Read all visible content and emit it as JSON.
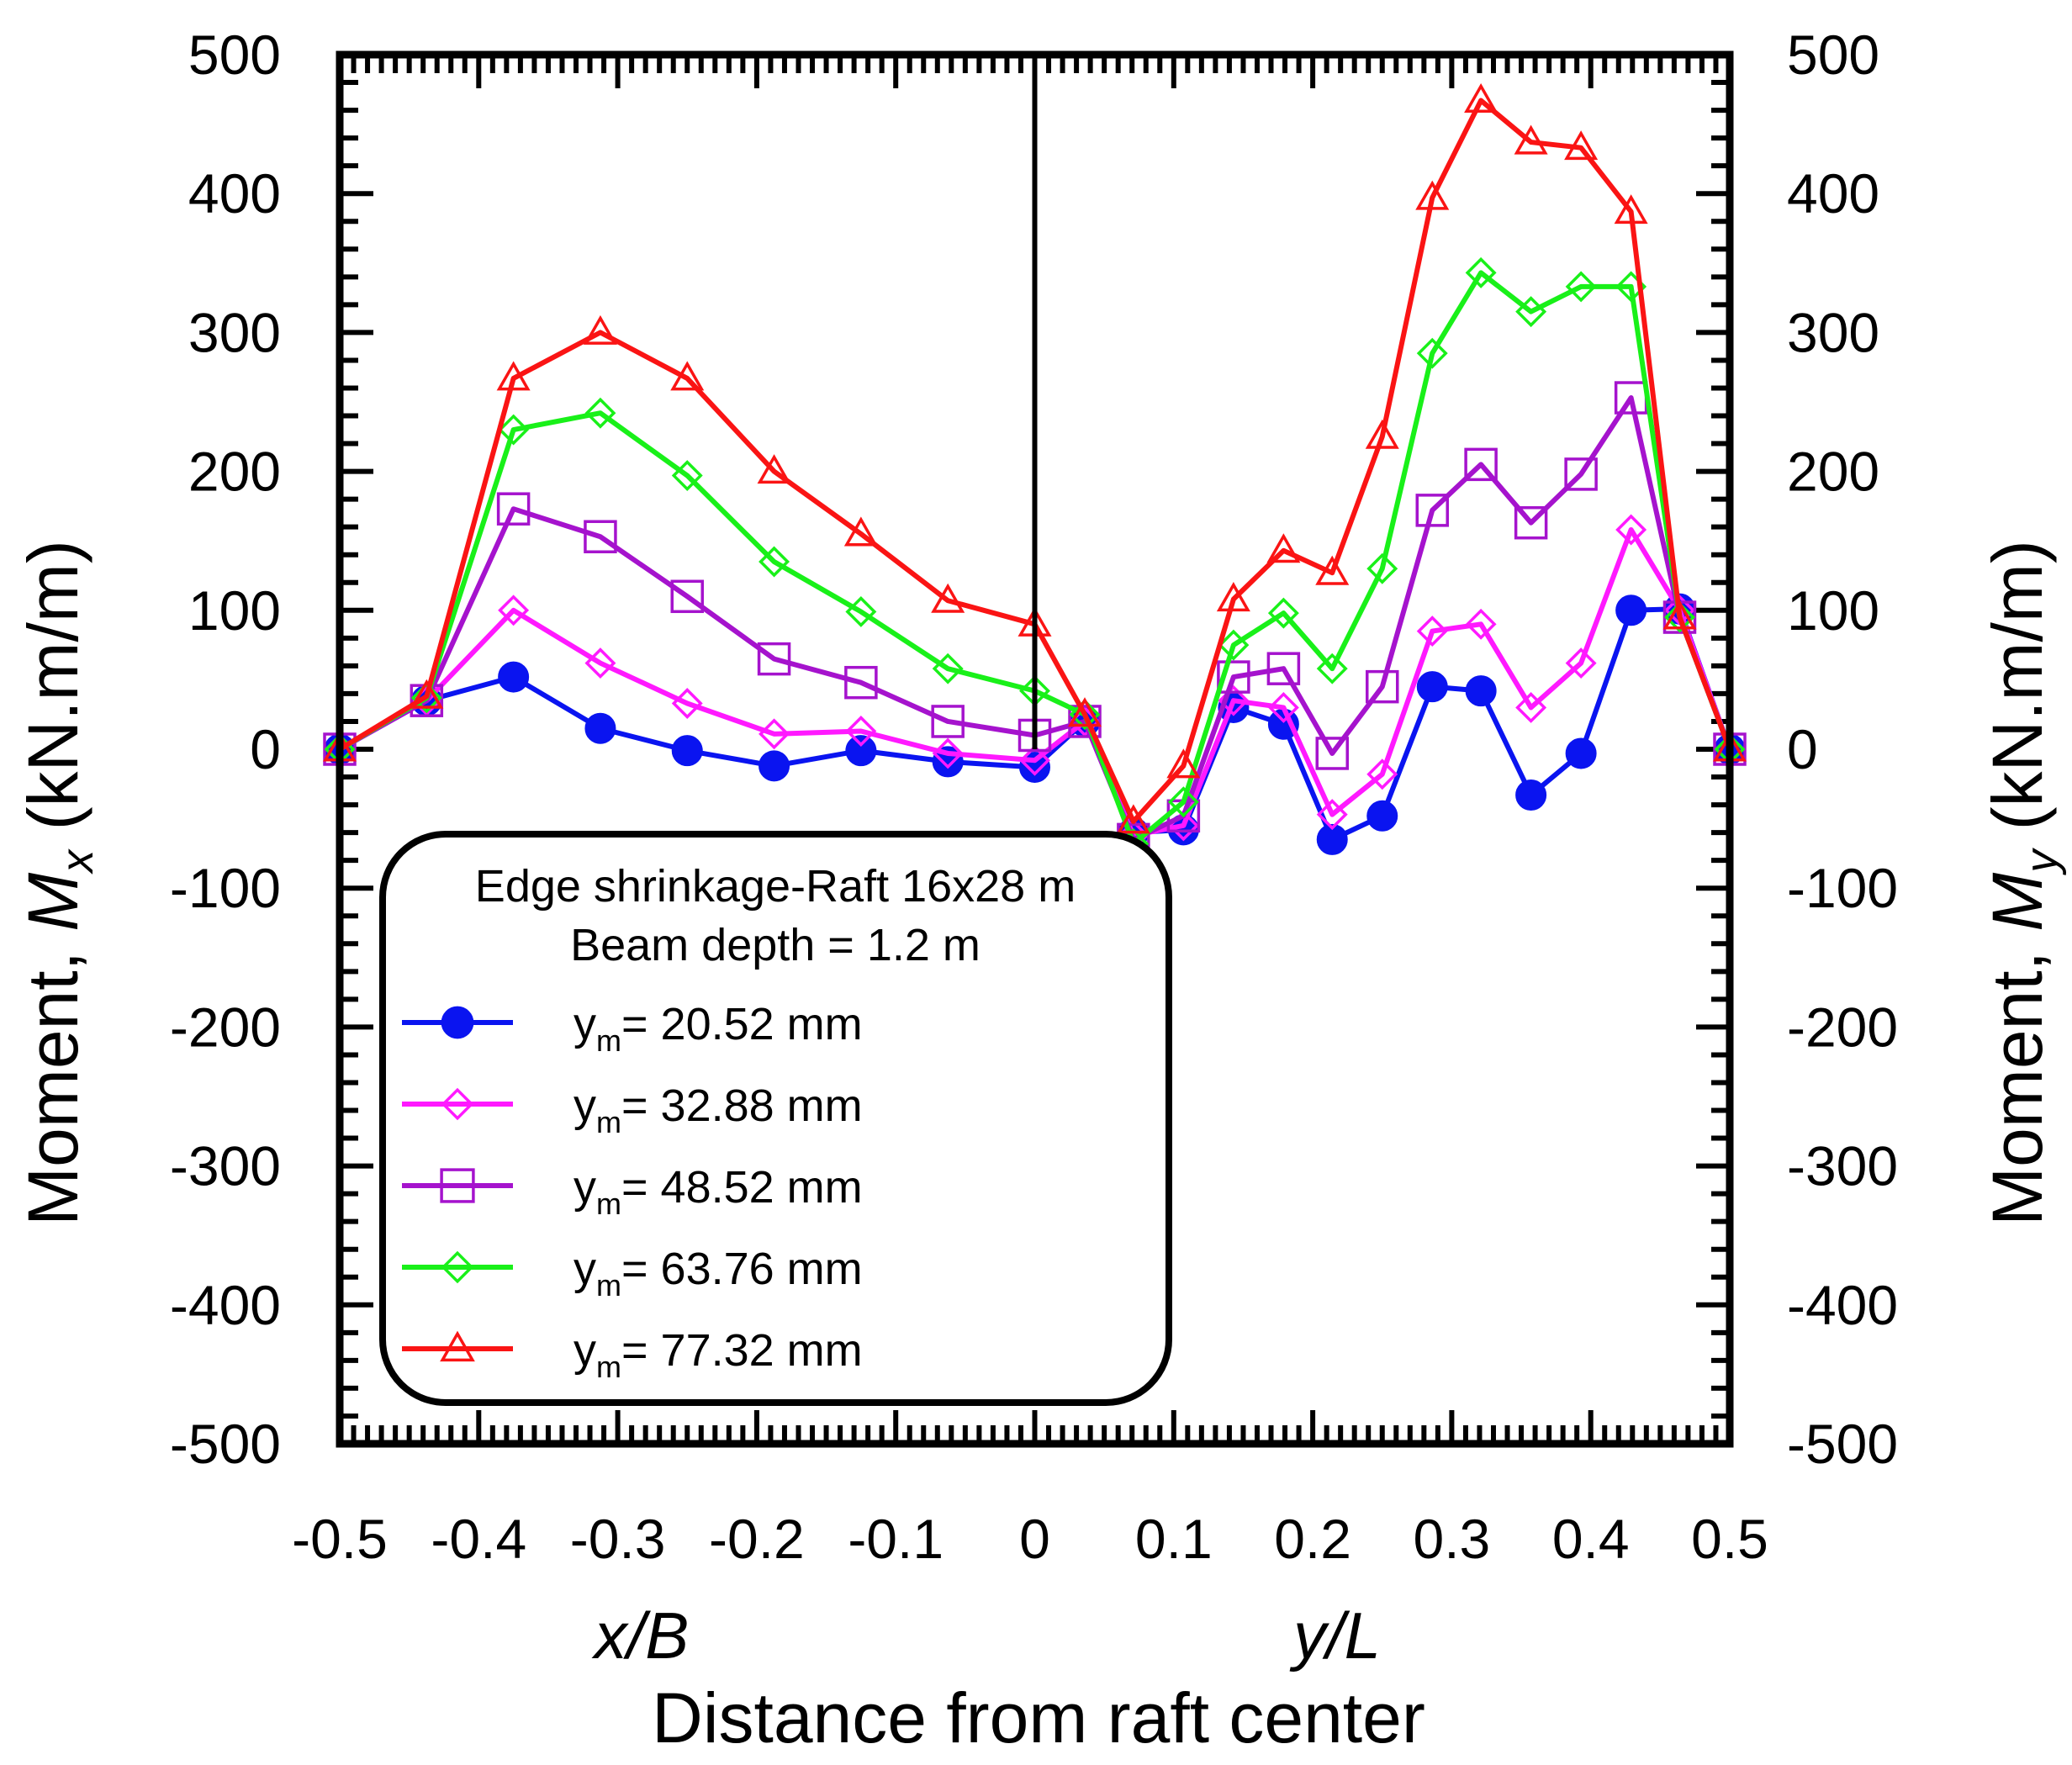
{
  "chart_data": {
    "type": "line",
    "title": "Edge shrinkage-Raft 16x28 m",
    "subtitle": "Beam depth = 1.2 m",
    "xlabel": "Distance from raft center",
    "x_sub_left": "x/B",
    "x_sub_right": "y/L",
    "ylabel_left": {
      "prefix": "Moment, ",
      "symbol": "M",
      "sub": "x",
      "unit": " (kN.m/m)"
    },
    "ylabel_right": {
      "prefix": "Moment, ",
      "symbol": "M",
      "sub": "y",
      "unit": " (kN.m/m)"
    },
    "xlim": [
      -0.5,
      0.5
    ],
    "ylim": [
      -500,
      500
    ],
    "x_ticks": [
      "-0.5",
      "-0.4",
      "-0.3",
      "-0.2",
      "-0.1",
      "0",
      "0.1",
      "0.2",
      "0.3",
      "0.4",
      "0.5"
    ],
    "y_ticks": [
      "500",
      "400",
      "300",
      "200",
      "100",
      "0",
      "-100",
      "-200",
      "-300",
      "-400",
      "-500"
    ],
    "x": [
      -0.5,
      -0.4375,
      -0.375,
      -0.3125,
      -0.25,
      -0.1875,
      -0.125,
      -0.0625,
      0,
      0.036,
      0.071,
      0.107,
      0.143,
      0.179,
      0.214,
      0.25,
      0.286,
      0.321,
      0.357,
      0.393,
      0.429,
      0.464,
      0.5
    ],
    "series": [
      {
        "name": "y",
        "sub": "m",
        "suffix": "= 20.52 mm",
        "color": "#0a14f0",
        "marker": "circle-filled",
        "values": [
          0,
          35,
          52,
          15,
          -1,
          -12,
          -1,
          -9,
          -13,
          20,
          -60,
          -58,
          30,
          18,
          -65,
          -48,
          45,
          42,
          -33,
          -3,
          100,
          101,
          0
        ]
      },
      {
        "name": "y",
        "sub": "m",
        "suffix": "= 32.88 mm",
        "color": "#ff19ff",
        "marker": "diamond-open",
        "values": [
          0,
          35,
          100,
          62,
          33,
          11,
          13,
          -3,
          -8,
          20,
          -62,
          -55,
          35,
          30,
          -47,
          -18,
          85,
          90,
          30,
          62,
          158,
          100,
          0
        ]
      },
      {
        "name": "y",
        "sub": "m",
        "suffix": "= 48.52 mm",
        "color": "#a513cd",
        "marker": "square-open",
        "values": [
          0,
          35,
          173,
          153,
          110,
          65,
          48,
          20,
          10,
          20,
          -65,
          -48,
          52,
          58,
          -3,
          45,
          172,
          205,
          163,
          198,
          253,
          95,
          0
        ]
      },
      {
        "name": "y",
        "sub": "m",
        "suffix": "= 63.76 mm",
        "color": "#19f019",
        "marker": "diamond-open",
        "values": [
          0,
          37,
          230,
          242,
          197,
          135,
          99,
          58,
          42,
          25,
          -68,
          -38,
          75,
          98,
          58,
          130,
          285,
          343,
          315,
          333,
          333,
          95,
          0
        ]
      },
      {
        "name": "y",
        "sub": "m",
        "suffix": "= 77.32 mm",
        "color": "#fa1414",
        "marker": "triangle-open",
        "values": [
          0,
          38,
          267,
          300,
          267,
          200,
          155,
          107,
          90,
          25,
          -52,
          -12,
          108,
          143,
          127,
          225,
          397,
          467,
          437,
          433,
          387,
          95,
          0
        ]
      }
    ]
  }
}
